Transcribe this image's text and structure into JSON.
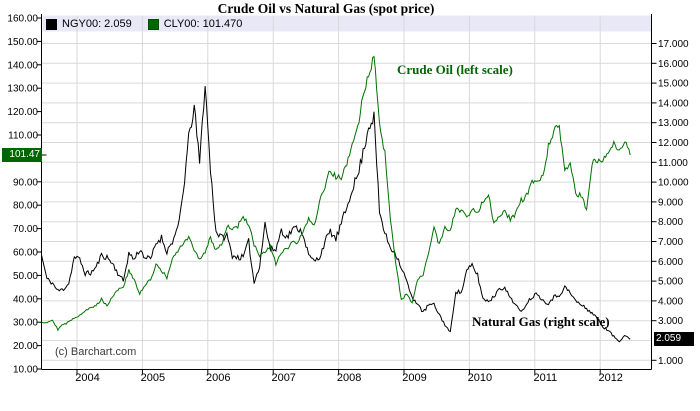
{
  "header": {
    "title": "Crude Oil vs Natural Gas (spot price)"
  },
  "legend": {
    "background": "#e8e8f7",
    "items": [
      {
        "symbol": "NGY00",
        "label": "NGY00: 2.059",
        "swatch_color": "#000000"
      },
      {
        "symbol": "CLY00",
        "label": "CLY00: 101.470",
        "swatch_color": "#006600"
      }
    ]
  },
  "annotations": {
    "crude": "Crude Oil (left scale)",
    "crude_color": "#006600",
    "gas": "Natural Gas (right scale)",
    "gas_color": "#000000"
  },
  "watermark": "(c) Barchart.com",
  "badges": {
    "left": {
      "text": "101.47",
      "value": 101.47,
      "bg": "#006600",
      "fg": "#ffffff"
    },
    "right": {
      "text": "2.059",
      "value": 2.059,
      "bg": "#000000",
      "fg": "#ffffff"
    }
  },
  "chart_data": {
    "type": "line",
    "title": "Crude Oil vs Natural Gas (spot price)",
    "grid": true,
    "grid_color": "#d9d9d9",
    "axis_color": "#000000",
    "x_axis": {
      "tick_years": [
        2004,
        2005,
        2006,
        2007,
        2008,
        2009,
        2010,
        2011,
        2012
      ],
      "range": [
        2003.46,
        2012.78
      ]
    },
    "left_axis": {
      "series": "Crude Oil",
      "range": [
        10,
        160
      ],
      "tick_values": [
        160,
        150,
        140,
        130,
        120,
        110,
        90,
        80,
        70,
        60,
        50,
        40,
        30,
        20,
        10
      ],
      "tick_labels": [
        "160.00",
        "150.00",
        "140.00",
        "130.00",
        "120.00",
        "110.00",
        "90.00",
        "80.00",
        "70.00",
        "60.00",
        "50.00",
        "40.00",
        "30.00",
        "20.00",
        "10.00"
      ],
      "current": 101.47
    },
    "right_axis": {
      "series": "Natural Gas",
      "range": [
        1,
        17
      ],
      "tick_values": [
        17,
        16,
        15,
        14,
        13,
        12,
        11,
        10,
        9,
        8,
        7,
        6,
        5,
        4,
        3,
        1
      ],
      "tick_labels": [
        "17.000",
        "16.000",
        "15.000",
        "14.000",
        "13.000",
        "12.000",
        "11.000",
        "10.000",
        "9.000",
        "8.000",
        "7.000",
        "6.000",
        "5.000",
        "4.000",
        "3.000",
        "1.000"
      ],
      "grid_values": [
        17,
        16,
        15,
        14,
        13,
        12,
        11,
        10,
        9,
        8,
        7,
        6,
        5,
        4,
        3,
        2,
        1
      ],
      "current": 2.059
    },
    "series": [
      {
        "name": "NGY00",
        "label": "Natural Gas spot",
        "axis": "right",
        "color": "#000000",
        "x_start": 2003.458,
        "x_step": 0.083333,
        "values": [
          6.3,
          5.1,
          4.9,
          4.5,
          4.6,
          4.9,
          6.2,
          6.1,
          5.4,
          5.4,
          5.7,
          6.3,
          6.2,
          5.9,
          5.4,
          5.0,
          6.4,
          6.1,
          6.6,
          6.2,
          6.1,
          6.9,
          7.2,
          6.5,
          7.0,
          7.6,
          9.5,
          12.2,
          13.8,
          11.0,
          15.0,
          10.6,
          7.5,
          7.2,
          7.3,
          6.3,
          6.2,
          6.2,
          7.0,
          4.9,
          5.8,
          7.9,
          6.6,
          6.6,
          7.6,
          7.2,
          7.6,
          7.7,
          7.4,
          6.3,
          6.0,
          6.2,
          7.0,
          7.5,
          7.1,
          7.9,
          8.7,
          9.7,
          10.3,
          11.5,
          12.8,
          13.3,
          8.5,
          7.4,
          6.7,
          6.4,
          5.7,
          5.0,
          4.1,
          3.9,
          3.4,
          3.8,
          3.8,
          3.3,
          2.8,
          2.4,
          4.5,
          4.4,
          5.5,
          5.8,
          5.3,
          4.1,
          4.0,
          4.2,
          4.7,
          4.6,
          4.2,
          3.8,
          3.4,
          3.9,
          4.2,
          4.4,
          4.0,
          3.9,
          4.2,
          4.3,
          4.7,
          4.4,
          4.0,
          3.8,
          3.6,
          3.4,
          3.1,
          2.7,
          2.5,
          2.2,
          1.95,
          2.3,
          2.059
        ]
      },
      {
        "name": "CLY00",
        "label": "Crude Oil spot",
        "axis": "left",
        "color": "#007200",
        "x_start": 2003.458,
        "x_step": 0.083333,
        "values": [
          30,
          30,
          31,
          27,
          29,
          30,
          32,
          33,
          35,
          36,
          37,
          40,
          37,
          41,
          44,
          45,
          52,
          48,
          42,
          46,
          48,
          55,
          52,
          49,
          57,
          60,
          64,
          66,
          61,
          57,
          60,
          66,
          61,
          63,
          71,
          70,
          71,
          75,
          72,
          63,
          58,
          60,
          62,
          55,
          60,
          61,
          64,
          64,
          68,
          75,
          71,
          81,
          88,
          95,
          92,
          92,
          97,
          106,
          113,
          127,
          135,
          145,
          116,
          102,
          74,
          55,
          40,
          42,
          38,
          48,
          50,
          60,
          70,
          63,
          71,
          69,
          78,
          78,
          75,
          78,
          77,
          82,
          85,
          72,
          76,
          77,
          74,
          76,
          82,
          84,
          90,
          90,
          92,
          105,
          112,
          113,
          95,
          97,
          85,
          84,
          78,
          98,
          99,
          100,
          103,
          107,
          103,
          108,
          101.47
        ]
      }
    ],
    "last_values": {
      "NGY00": 2.059,
      "CLY00": 101.47
    }
  }
}
